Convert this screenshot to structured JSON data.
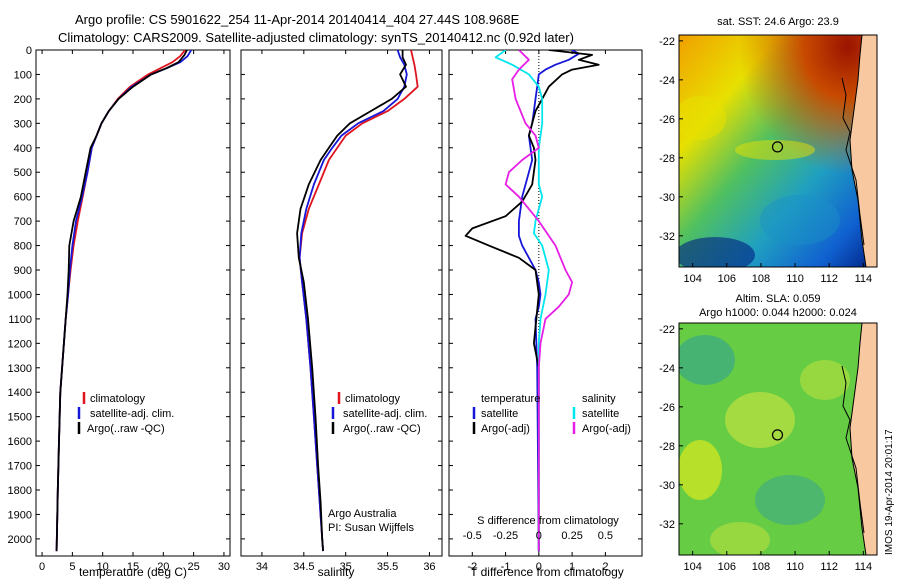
{
  "header": {
    "line1": "Argo profile: CS 5901622_254 11-Apr-2014 20140414_404 27.44S 108.968E",
    "line2": "Climatology: CARS2009. Satellite-adjusted climatology: synTS_20140412.nc (0.92d later)"
  },
  "footer_stamp": "IMOS 19-Apr-2014 20:01:17",
  "colors": {
    "climatology": "#e0141e",
    "satellite": "#1616d8",
    "argo": "#000000",
    "sat_sal": "#00e6ee",
    "argo_sal": "#e61ee6"
  },
  "chart_data": [
    {
      "id": "temperature",
      "type": "line",
      "xlabel": "temperature (deg C)",
      "xlim": [
        -1,
        31
      ],
      "ylim": [
        2070,
        0
      ],
      "xticks": [
        0,
        5,
        10,
        15,
        20,
        25,
        30
      ],
      "yticks": [
        0,
        100,
        200,
        300,
        400,
        500,
        600,
        700,
        800,
        900,
        1000,
        1100,
        1200,
        1300,
        1400,
        1500,
        1600,
        1700,
        1800,
        1900,
        2000
      ],
      "legend": [
        "climatology",
        "satellite-adj. clim.",
        "Argo(..raw -QC)"
      ],
      "series": [
        {
          "name": "climatology",
          "color": "#e0141e",
          "x": [
            23.6,
            22.8,
            21.5,
            19.5,
            17.5,
            14.5,
            12.5,
            11.0,
            9.8,
            9.0,
            8.2,
            7.5,
            6.7,
            5.9,
            5.2,
            4.7,
            4.3,
            3.9,
            3.6,
            3.3,
            3.0,
            2.8,
            2.6,
            2.4
          ],
          "y": [
            0,
            25,
            50,
            75,
            100,
            150,
            200,
            250,
            300,
            350,
            400,
            500,
            600,
            700,
            800,
            900,
            1000,
            1100,
            1200,
            1300,
            1400,
            1600,
            1800,
            2050
          ]
        },
        {
          "name": "satellite-adj. clim.",
          "color": "#1616d8",
          "x": [
            24.6,
            24.0,
            22.8,
            20.5,
            18.0,
            14.8,
            12.6,
            11.0,
            9.8,
            9.0,
            8.2,
            7.5,
            6.6,
            5.6,
            5.0,
            4.6,
            4.3,
            3.9,
            3.6,
            3.3,
            3.0,
            2.8,
            2.6,
            2.4
          ],
          "y": [
            0,
            25,
            50,
            75,
            100,
            150,
            200,
            250,
            300,
            350,
            400,
            500,
            600,
            700,
            800,
            900,
            1000,
            1100,
            1200,
            1300,
            1400,
            1600,
            1800,
            2050
          ]
        },
        {
          "name": "Argo(..raw -QC)",
          "color": "#000000",
          "x": [
            23.9,
            23.5,
            22.5,
            20.5,
            18.0,
            15.0,
            12.6,
            11.0,
            9.8,
            9.0,
            8.0,
            7.2,
            6.4,
            5.2,
            4.5,
            4.4,
            4.2,
            3.9,
            3.6,
            3.3,
            3.0,
            2.8,
            2.6,
            2.4
          ],
          "y": [
            0,
            20,
            50,
            75,
            100,
            150,
            200,
            250,
            300,
            350,
            400,
            500,
            600,
            700,
            800,
            900,
            1000,
            1100,
            1200,
            1300,
            1400,
            1600,
            1800,
            2050
          ]
        }
      ]
    },
    {
      "id": "salinity",
      "type": "line",
      "xlabel": "salinity",
      "xlim": [
        33.75,
        36.15
      ],
      "ylim": [
        2070,
        0
      ],
      "xticks": [
        34,
        34.5,
        35,
        35.5,
        36
      ],
      "legend": [
        "climatology",
        "satellite-adj. clim.",
        "Argo(..raw -QC)"
      ],
      "annotation": [
        "Argo Australia",
        "PI: Susan Wijffels"
      ],
      "series": [
        {
          "name": "climatology",
          "color": "#e0141e",
          "x": [
            35.78,
            35.8,
            35.82,
            35.84,
            35.86,
            35.7,
            35.5,
            35.2,
            35.0,
            34.9,
            34.8,
            34.68,
            34.56,
            34.48,
            34.45,
            34.48,
            34.53,
            34.58,
            34.62,
            34.66,
            34.69,
            34.72,
            34.73
          ],
          "y": [
            0,
            30,
            60,
            100,
            150,
            200,
            250,
            300,
            350,
            400,
            450,
            550,
            650,
            750,
            850,
            950,
            1100,
            1300,
            1500,
            1700,
            1850,
            2000,
            2050
          ]
        },
        {
          "name": "satellite-adj. clim.",
          "color": "#1616d8",
          "x": [
            35.62,
            35.65,
            35.7,
            35.73,
            35.7,
            35.62,
            35.45,
            35.15,
            34.95,
            34.84,
            34.74,
            34.62,
            34.53,
            34.47,
            34.45,
            34.48,
            34.53,
            34.58,
            34.62,
            34.66,
            34.69,
            34.72,
            34.73
          ],
          "y": [
            0,
            30,
            60,
            100,
            150,
            200,
            250,
            300,
            350,
            400,
            450,
            550,
            650,
            750,
            850,
            950,
            1100,
            1300,
            1500,
            1700,
            1850,
            2000,
            2050
          ]
        },
        {
          "name": "Argo(..raw -QC)",
          "color": "#000000",
          "x": [
            35.68,
            35.68,
            35.72,
            35.65,
            35.72,
            35.55,
            35.3,
            35.05,
            34.9,
            34.8,
            34.7,
            34.56,
            34.46,
            34.42,
            34.44,
            34.5,
            34.55,
            34.6,
            34.64,
            34.67,
            34.7,
            34.72,
            34.73
          ],
          "y": [
            0,
            30,
            60,
            100,
            150,
            200,
            250,
            300,
            350,
            400,
            450,
            550,
            650,
            750,
            850,
            950,
            1100,
            1300,
            1500,
            1700,
            1850,
            2000,
            2050
          ]
        }
      ]
    },
    {
      "id": "differences",
      "type": "line",
      "xlabel": "T difference from climatology",
      "xlim": [
        -2.7,
        3.1
      ],
      "ylim": [
        2070,
        0
      ],
      "xticks": [
        -2,
        -1,
        0,
        1,
        2
      ],
      "top_label": "S difference from climatology",
      "top_ticks": [
        "-0.5",
        "-0.25",
        "0",
        "0.25",
        "0.5"
      ],
      "top_tick_x": [
        -2,
        -1,
        0,
        1,
        2
      ],
      "legend_groups": [
        {
          "title": "temperature",
          "items": [
            "satellite",
            "Argo(-adj)"
          ]
        },
        {
          "title": "salinity",
          "items": [
            "satellite",
            "Argo(-adj)"
          ]
        }
      ],
      "series": [
        {
          "name": "temperature satellite",
          "color": "#1616d8",
          "x": [
            1.0,
            1.2,
            0.9,
            0.5,
            0.2,
            0.0,
            -0.05,
            -0.1,
            -0.15,
            -0.2,
            -0.3,
            -0.25,
            -0.2,
            -0.3,
            -0.5,
            -0.6,
            -0.6,
            -0.5,
            -0.3,
            -0.1,
            0.0,
            0.05,
            0.0,
            -0.1,
            -0.05,
            0.0
          ],
          "y": [
            0,
            15,
            40,
            60,
            80,
            100,
            150,
            200,
            250,
            300,
            350,
            400,
            450,
            500,
            600,
            700,
            760,
            800,
            850,
            900,
            950,
            1000,
            1050,
            1100,
            1300,
            2050
          ]
        },
        {
          "name": "temperature Argo(-adj)",
          "color": "#000000",
          "x": [
            0.3,
            1.6,
            1.2,
            1.8,
            1.0,
            0.7,
            0.3,
            0.1,
            -0.1,
            -0.2,
            -0.3,
            -0.15,
            -0.1,
            -0.2,
            -0.5,
            -1.0,
            -2.0,
            -2.2,
            -1.5,
            -0.6,
            -0.1,
            0.0,
            -0.15,
            0.0,
            0.0
          ],
          "y": [
            0,
            20,
            40,
            60,
            80,
            100,
            150,
            200,
            250,
            300,
            350,
            400,
            450,
            550,
            620,
            680,
            730,
            760,
            800,
            850,
            900,
            1000,
            1200,
            1300,
            2050
          ]
        },
        {
          "name": "salinity satellite",
          "color": "#00e6ee",
          "x": [
            -1.0,
            -1.3,
            -0.8,
            -0.3,
            0.0,
            0.1,
            0.1,
            0.0,
            0.0,
            0.0,
            0.1,
            0.0,
            -0.1,
            -0.15,
            0.1,
            0.3,
            0.2,
            0.05,
            0.0,
            0.0,
            0.0
          ],
          "y": [
            0,
            30,
            60,
            100,
            150,
            200,
            300,
            400,
            500,
            550,
            600,
            650,
            700,
            750,
            800,
            900,
            1000,
            1100,
            1200,
            1400,
            2050
          ]
        },
        {
          "name": "salinity Argo(-adj)",
          "color": "#e61ee6",
          "x": [
            -0.6,
            -0.3,
            -0.6,
            -0.8,
            -0.7,
            -0.4,
            -0.1,
            0.0,
            -0.5,
            -0.9,
            -1.0,
            -0.6,
            0.0,
            0.5,
            0.8,
            1.0,
            0.9,
            0.6,
            0.2,
            0.05,
            0.0,
            0.0
          ],
          "y": [
            0,
            40,
            80,
            120,
            200,
            300,
            350,
            400,
            450,
            500,
            550,
            600,
            700,
            800,
            900,
            950,
            1000,
            1050,
            1100,
            1200,
            1300,
            2050
          ]
        }
      ]
    },
    {
      "id": "sst_map",
      "type": "heatmap",
      "title": "sat. SST: 24.6 Argo: 23.9",
      "xlim": [
        103.2,
        114.8
      ],
      "ylim": [
        -33.6,
        -21.7
      ],
      "xticks": [
        104,
        106,
        108,
        110,
        112,
        114
      ],
      "yticks": [
        -22,
        -24,
        -26,
        -28,
        -30,
        -32
      ],
      "marker": {
        "lon": 108.968,
        "lat": -27.44
      }
    },
    {
      "id": "sla_map",
      "type": "heatmap",
      "title": [
        "Altim. SLA: 0.059",
        "Argo h1000: 0.044 h2000: 0.024"
      ],
      "xlim": [
        103.2,
        114.8
      ],
      "ylim": [
        -33.6,
        -21.7
      ],
      "xticks": [
        104,
        106,
        108,
        110,
        112,
        114
      ],
      "yticks": [
        -22,
        -24,
        -26,
        -28,
        -30,
        -32
      ],
      "marker": {
        "lon": 108.968,
        "lat": -27.44
      }
    }
  ]
}
